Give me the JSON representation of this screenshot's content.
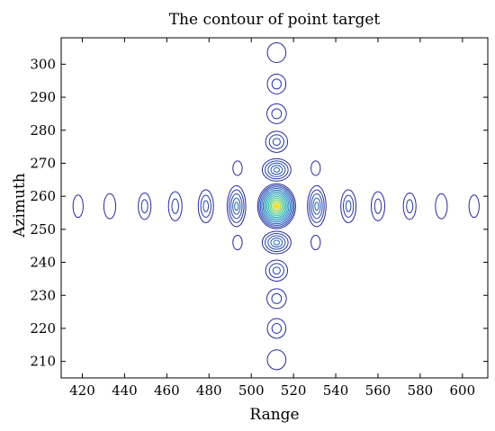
{
  "chart_data": {
    "type": "contour",
    "title": "The contour of point target",
    "xlabel": "Range",
    "ylabel": "Azimuth",
    "xlim": [
      410,
      612
    ],
    "ylim": [
      205,
      308
    ],
    "xticks": [
      420,
      440,
      460,
      480,
      500,
      520,
      540,
      560,
      580,
      600
    ],
    "yticks": [
      210,
      220,
      230,
      240,
      250,
      260,
      270,
      280,
      290,
      300
    ],
    "grid": false,
    "colors": {
      "outer_contour": "#2b2ba8",
      "peak": "#f7e21c"
    },
    "peak": {
      "x": 512,
      "y": 257
    },
    "range_lobes": [
      {
        "x": 418,
        "y": 257,
        "rings": 1,
        "w": 2.4,
        "h": 3.4
      },
      {
        "x": 433,
        "y": 257,
        "rings": 1,
        "w": 2.8,
        "h": 3.8
      },
      {
        "x": 449.5,
        "y": 257,
        "rings": 2,
        "w": 3.0,
        "h": 4.0
      },
      {
        "x": 464,
        "y": 257,
        "rings": 2,
        "w": 3.2,
        "h": 4.4
      },
      {
        "x": 478.5,
        "y": 257,
        "rings": 3,
        "w": 3.6,
        "h": 5.0
      },
      {
        "x": 493,
        "y": 257,
        "rings": 5,
        "w": 4.4,
        "h": 6.2
      },
      {
        "x": 531,
        "y": 257,
        "rings": 5,
        "w": 4.4,
        "h": 6.2
      },
      {
        "x": 546,
        "y": 257,
        "rings": 3,
        "w": 3.6,
        "h": 5.0
      },
      {
        "x": 560,
        "y": 257,
        "rings": 2,
        "w": 3.2,
        "h": 4.4
      },
      {
        "x": 575,
        "y": 257,
        "rings": 2,
        "w": 3.0,
        "h": 4.0
      },
      {
        "x": 590,
        "y": 257,
        "rings": 1,
        "w": 2.8,
        "h": 3.8
      },
      {
        "x": 605.5,
        "y": 257,
        "rings": 1,
        "w": 2.4,
        "h": 3.4
      }
    ],
    "azimuth_lobes": [
      {
        "x": 512,
        "y": 210.5,
        "rings": 1,
        "w": 4.4,
        "h": 3.0
      },
      {
        "x": 512,
        "y": 220,
        "rings": 2,
        "w": 4.4,
        "h": 3.0
      },
      {
        "x": 512,
        "y": 229,
        "rings": 2,
        "w": 4.6,
        "h": 3.0
      },
      {
        "x": 512,
        "y": 237.5,
        "rings": 3,
        "w": 5.2,
        "h": 3.2
      },
      {
        "x": 512,
        "y": 246,
        "rings": 5,
        "w": 6.8,
        "h": 3.4
      },
      {
        "x": 512,
        "y": 268,
        "rings": 5,
        "w": 6.8,
        "h": 3.4
      },
      {
        "x": 512,
        "y": 276.5,
        "rings": 3,
        "w": 5.2,
        "h": 3.2
      },
      {
        "x": 512,
        "y": 285,
        "rings": 2,
        "w": 4.6,
        "h": 3.0
      },
      {
        "x": 512,
        "y": 294,
        "rings": 2,
        "w": 4.4,
        "h": 3.0
      },
      {
        "x": 512,
        "y": 303.5,
        "rings": 1,
        "w": 4.4,
        "h": 3.0
      }
    ],
    "corner_lobes": [
      {
        "x": 493.5,
        "y": 268.5,
        "rings": 1,
        "w": 2.2,
        "h": 2.2
      },
      {
        "x": 530.5,
        "y": 268.5,
        "rings": 1,
        "w": 2.2,
        "h": 2.2
      },
      {
        "x": 493.5,
        "y": 246,
        "rings": 1,
        "w": 2.2,
        "h": 2.2
      },
      {
        "x": 530.5,
        "y": 246,
        "rings": 1,
        "w": 2.2,
        "h": 2.2
      }
    ],
    "main_lobe": {
      "x": 512,
      "y": 257,
      "rings": 14,
      "w": 9.0,
      "h": 6.8
    }
  }
}
